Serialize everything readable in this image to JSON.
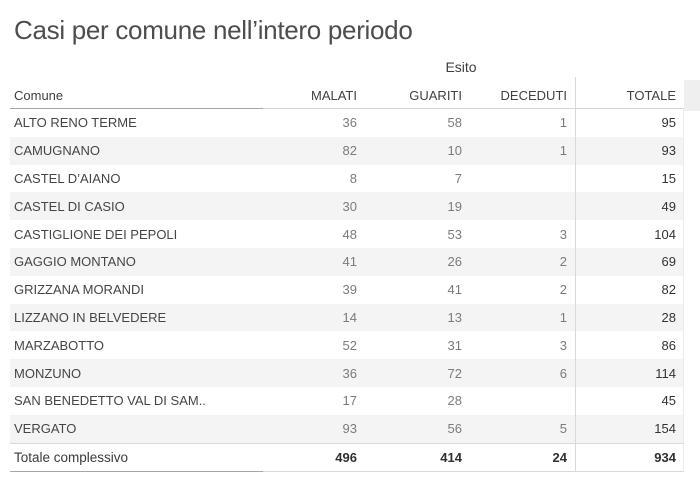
{
  "title": "Casi per comune nell’intero periodo",
  "colors": {
    "title": "#4d4d4d",
    "header_text": "#414141",
    "row_text": "#454545",
    "muted_number": "#7b7b7b",
    "dark_number": "#333333",
    "stripe": "#f4f4f4",
    "grid_line": "#d9d9d9",
    "header_underline": "#a6a6a6"
  },
  "chart_data": {
    "type": "table",
    "title": "Casi per comune nell’intero periodo",
    "field_label": "Esito",
    "row_field_label": "Comune",
    "columns": [
      "MALATI",
      "GUARITI",
      "DECEDUTI",
      "TOTALE"
    ],
    "layout": {
      "striped": true,
      "grand_total_row": true,
      "total_column_separator": true
    },
    "rows": [
      [
        "ALTO RENO TERME",
        "36",
        "58",
        "1",
        "95"
      ],
      [
        "CAMUGNANO",
        "82",
        "10",
        "1",
        "93"
      ],
      [
        "CASTEL D’AIANO",
        "8",
        "7",
        "",
        "15"
      ],
      [
        "CASTEL DI CASIO",
        "30",
        "19",
        "",
        "49"
      ],
      [
        "CASTIGLIONE DEI PEPOLI",
        "48",
        "53",
        "3",
        "104"
      ],
      [
        "GAGGIO MONTANO",
        "41",
        "26",
        "2",
        "69"
      ],
      [
        "GRIZZANA MORANDI",
        "39",
        "41",
        "2",
        "82"
      ],
      [
        "LIZZANO IN BELVEDERE",
        "14",
        "13",
        "1",
        "28"
      ],
      [
        "MARZABOTTO",
        "52",
        "31",
        "3",
        "86"
      ],
      [
        "MONZUNO",
        "36",
        "72",
        "6",
        "114"
      ],
      [
        "SAN BENEDETTO VAL DI SAM..",
        "17",
        "28",
        "",
        "45"
      ],
      [
        "VERGATO",
        "93",
        "56",
        "5",
        "154"
      ]
    ],
    "totals": [
      "Totale complessivo",
      "496",
      "414",
      "24",
      "934"
    ]
  }
}
